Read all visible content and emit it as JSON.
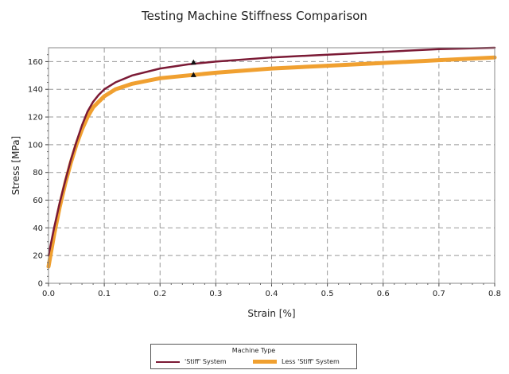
{
  "chart_data": {
    "type": "line",
    "title": "Testing Machine Stiffness Comparison",
    "xlabel": "Strain  [%]",
    "ylabel": "Stress [MPa]",
    "xlim": [
      0,
      0.8
    ],
    "ylim": [
      0,
      170
    ],
    "x_ticks": [
      "0.0",
      "0.1",
      "0.2",
      "0.3",
      "0.4",
      "0.5",
      "0.6",
      "0.7",
      "0.8"
    ],
    "y_ticks": [
      "0",
      "20",
      "40",
      "60",
      "80",
      "100",
      "120",
      "140",
      "160"
    ],
    "grid": true,
    "legend_title": "Machine Type",
    "legend_position": "bottom",
    "series": [
      {
        "name": "'Stiff' System",
        "color": "#7b1a35",
        "x": [
          0.0,
          0.01,
          0.02,
          0.03,
          0.04,
          0.05,
          0.06,
          0.07,
          0.08,
          0.09,
          0.1,
          0.12,
          0.15,
          0.2,
          0.25,
          0.3,
          0.4,
          0.5,
          0.6,
          0.7,
          0.8
        ],
        "y": [
          20,
          40,
          58,
          74,
          89,
          102,
          114,
          124,
          131,
          136,
          140,
          145,
          150,
          155,
          158,
          160,
          163,
          165,
          167,
          169,
          170
        ],
        "marker": {
          "x": 0.26,
          "y": 159
        }
      },
      {
        "name": "Less 'Stiff' System",
        "color": "#f0a030",
        "x": [
          0.0,
          0.01,
          0.02,
          0.03,
          0.04,
          0.05,
          0.06,
          0.07,
          0.08,
          0.09,
          0.1,
          0.12,
          0.15,
          0.2,
          0.25,
          0.3,
          0.4,
          0.5,
          0.6,
          0.7,
          0.8
        ],
        "y": [
          12,
          35,
          55,
          72,
          87,
          100,
          111,
          120,
          127,
          131,
          135,
          140,
          144,
          148,
          150,
          152,
          155,
          157,
          159,
          161,
          163
        ],
        "marker": {
          "x": 0.26,
          "y": 150
        }
      }
    ]
  }
}
